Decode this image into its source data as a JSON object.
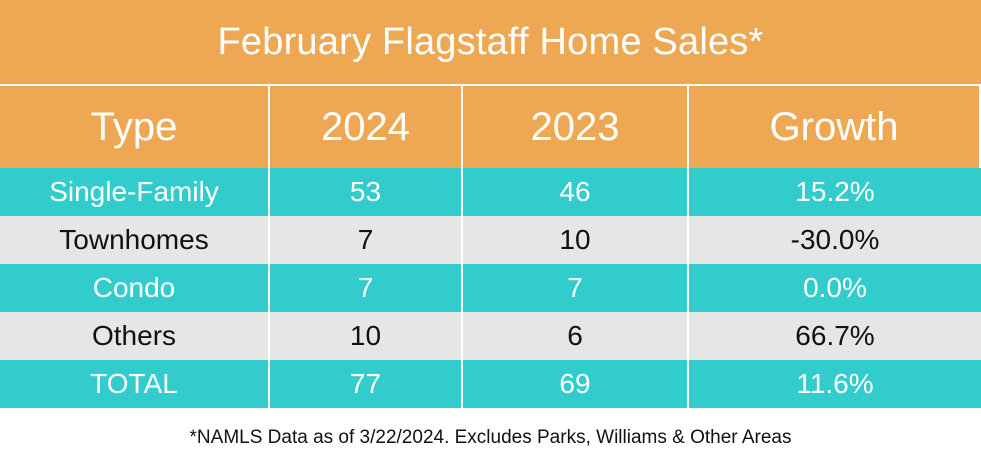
{
  "chart_data": {
    "type": "table",
    "title": "February Flagstaff Home Sales*",
    "columns": [
      "Type",
      "2024",
      "2023",
      "Growth"
    ],
    "rows": [
      {
        "type": "Single-Family",
        "y2024": "53",
        "y2023": "46",
        "growth": "15.2%"
      },
      {
        "type": "Townhomes",
        "y2024": "7",
        "y2023": "10",
        "growth": "-30.0%"
      },
      {
        "type": "Condo",
        "y2024": "7",
        "y2023": "7",
        "growth": "0.0%"
      },
      {
        "type": "Others",
        "y2024": "10",
        "y2023": "6",
        "growth": "66.7%"
      },
      {
        "type": "TOTAL",
        "y2024": "77",
        "y2023": "69",
        "growth": "11.6%"
      }
    ],
    "footnote": "*NAMLS Data as of 3/22/2024. Excludes Parks, Williams & Other Areas"
  },
  "colors": {
    "header_bg": "#EEA854",
    "teal_row": "#33CCCC",
    "gray_row": "#E6E6E6"
  }
}
